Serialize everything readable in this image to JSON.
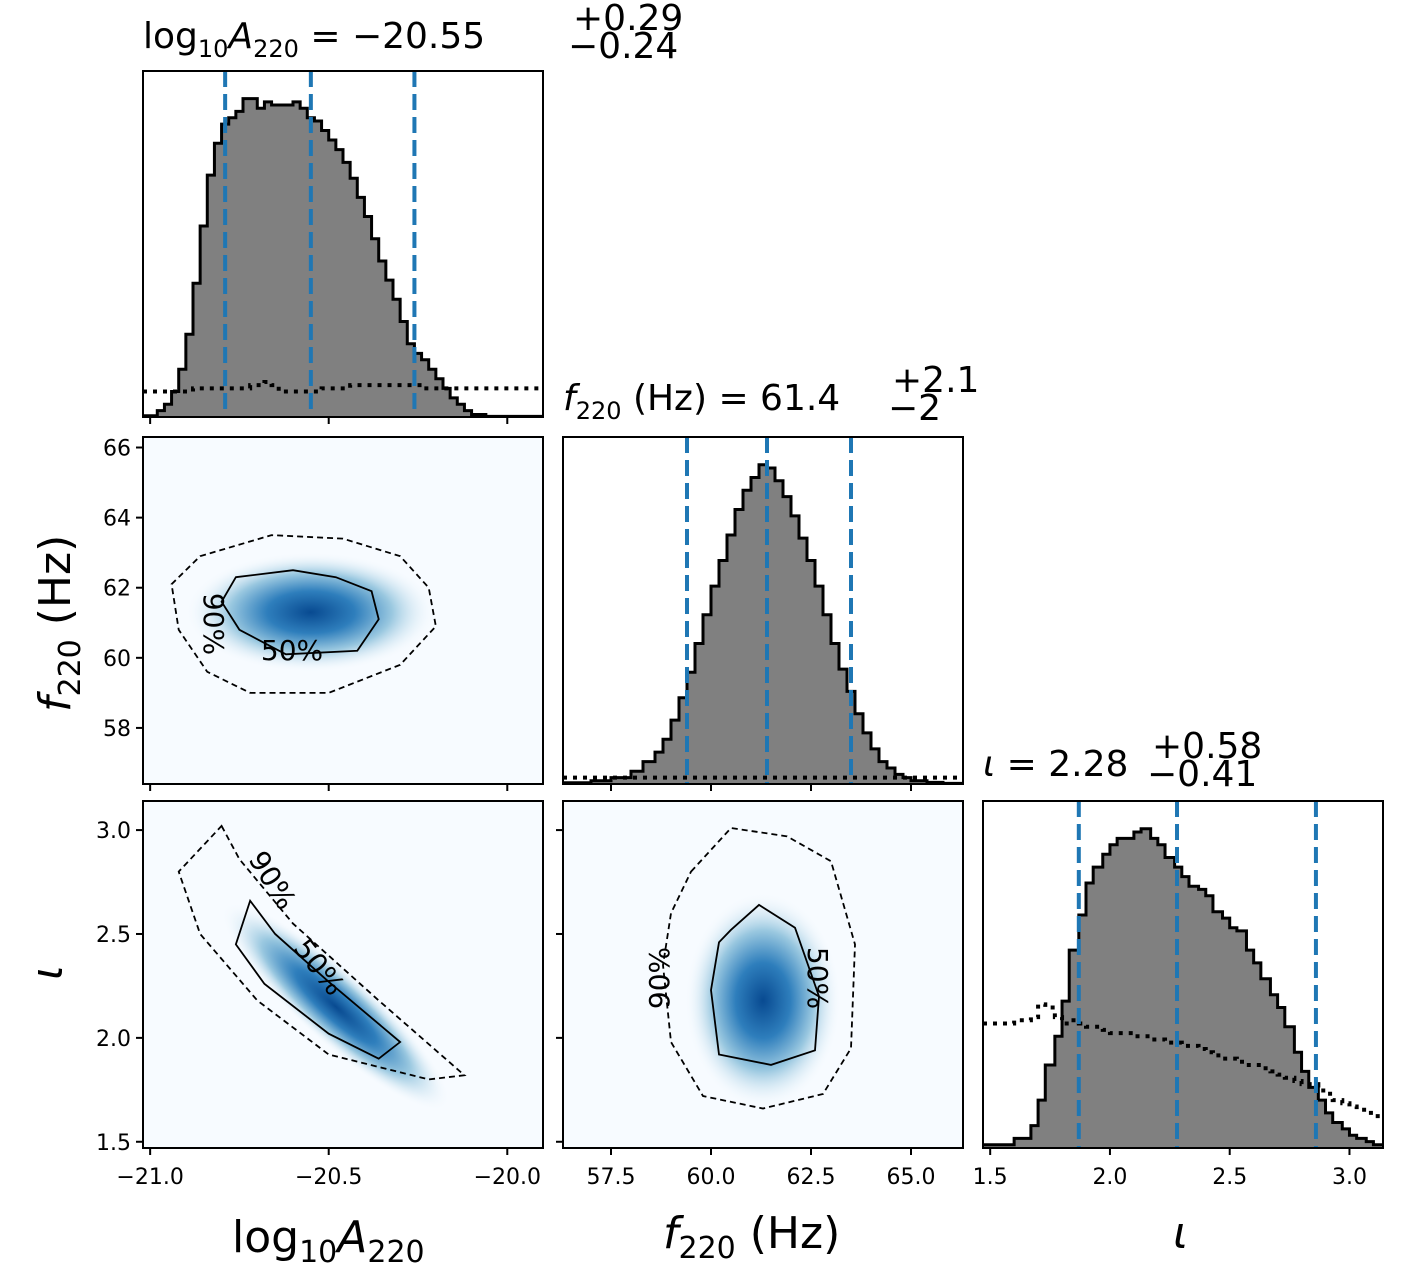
{
  "chart_data": [
    {
      "type": "histogram",
      "parameter": "log10A220",
      "title": {
        "main": "log",
        "sub1": "10",
        "mid": "A",
        "sub2": "220",
        "eq": " = −20.55",
        "sup": "+0.29",
        "sub": "−0.24"
      },
      "xlim": [
        -21.02,
        -19.9
      ],
      "x_ticks": [
        -21.0,
        -20.5,
        -20.0
      ],
      "quantile_lines": [
        -20.79,
        -20.55,
        -20.26
      ],
      "bins": [
        -21.02,
        -20.98,
        -20.96,
        -20.94,
        -20.92,
        -20.9,
        -20.88,
        -20.86,
        -20.84,
        -20.82,
        -20.8,
        -20.78,
        -20.76,
        -20.74,
        -20.72,
        -20.7,
        -20.68,
        -20.66,
        -20.64,
        -20.62,
        -20.6,
        -20.58,
        -20.56,
        -20.54,
        -20.52,
        -20.5,
        -20.48,
        -20.46,
        -20.44,
        -20.42,
        -20.4,
        -20.38,
        -20.36,
        -20.34,
        -20.32,
        -20.3,
        -20.28,
        -20.26,
        -20.24,
        -20.22,
        -20.2,
        -20.18,
        -20.16,
        -20.14,
        -20.12,
        -20.1,
        -20.06,
        -19.9
      ],
      "counts": [
        0.004,
        0.02,
        0.04,
        0.08,
        0.15,
        0.26,
        0.42,
        0.6,
        0.76,
        0.86,
        0.92,
        0.94,
        0.96,
        1.0,
        1.0,
        0.97,
        0.99,
        0.98,
        0.98,
        0.98,
        0.99,
        0.97,
        0.94,
        0.93,
        0.9,
        0.87,
        0.84,
        0.8,
        0.75,
        0.69,
        0.63,
        0.56,
        0.49,
        0.43,
        0.37,
        0.3,
        0.23,
        0.2,
        0.18,
        0.15,
        0.12,
        0.09,
        0.06,
        0.04,
        0.02,
        0.008,
        0.002
      ],
      "prior": [
        0.08,
        0.08,
        0.08,
        0.08,
        0.08,
        0.08,
        0.09,
        0.09,
        0.09,
        0.09,
        0.09,
        0.09,
        0.09,
        0.09,
        0.1,
        0.1,
        0.11,
        0.1,
        0.08,
        0.08,
        0.08,
        0.08,
        0.08,
        0.08,
        0.09,
        0.09,
        0.09,
        0.09,
        0.1,
        0.1,
        0.1,
        0.1,
        0.1,
        0.1,
        0.1,
        0.1,
        0.1,
        0.1,
        0.09,
        0.09,
        0.09,
        0.09,
        0.09,
        0.09,
        0.09,
        0.09,
        0.09
      ]
    },
    {
      "type": "histogram",
      "parameter": "f220",
      "title": {
        "main": "f",
        "sub1": "220",
        "eq": " (Hz) = 61.4",
        "sup": "+2.1",
        "sub": "−2"
      },
      "xlim": [
        56.3,
        66.3
      ],
      "x_ticks": [
        57.5,
        60.0,
        62.5,
        65.0
      ],
      "quantile_lines": [
        59.4,
        61.4,
        63.5
      ],
      "bins": [
        56.3,
        57.0,
        57.5,
        58.0,
        58.3,
        58.6,
        58.8,
        59.0,
        59.2,
        59.4,
        59.6,
        59.8,
        60.0,
        60.2,
        60.4,
        60.6,
        60.8,
        61.0,
        61.2,
        61.4,
        61.6,
        61.8,
        62.0,
        62.2,
        62.4,
        62.6,
        62.8,
        63.0,
        63.2,
        63.4,
        63.6,
        63.8,
        64.0,
        64.2,
        64.4,
        64.6,
        64.8,
        65.0,
        65.4,
        65.8,
        66.3
      ],
      "counts": [
        0.004,
        0.01,
        0.02,
        0.04,
        0.07,
        0.1,
        0.14,
        0.2,
        0.27,
        0.35,
        0.44,
        0.53,
        0.62,
        0.7,
        0.78,
        0.86,
        0.92,
        0.96,
        1.0,
        0.99,
        0.95,
        0.9,
        0.84,
        0.77,
        0.7,
        0.62,
        0.53,
        0.44,
        0.36,
        0.29,
        0.22,
        0.16,
        0.11,
        0.07,
        0.05,
        0.03,
        0.02,
        0.01,
        0.005,
        0.002
      ],
      "prior": [
        0.02,
        0.02,
        0.02,
        0.02,
        0.02,
        0.02,
        0.02,
        0.02,
        0.02,
        0.02,
        0.02,
        0.02,
        0.02,
        0.02,
        0.02,
        0.02,
        0.02,
        0.02,
        0.02,
        0.02,
        0.02,
        0.02,
        0.02,
        0.02,
        0.02,
        0.02,
        0.02,
        0.02,
        0.02,
        0.02,
        0.02,
        0.02,
        0.02,
        0.02,
        0.02,
        0.02,
        0.02,
        0.02,
        0.02,
        0.02
      ]
    },
    {
      "type": "histogram",
      "parameter": "iota",
      "title": {
        "main": "ι",
        "eq": " = 2.28",
        "sup": "+0.58",
        "sub": "−0.41"
      },
      "xlim": [
        1.47,
        3.14
      ],
      "x_ticks": [
        1.5,
        2.0,
        2.5,
        3.0
      ],
      "quantile_lines": [
        1.87,
        2.28,
        2.86
      ],
      "bins": [
        1.47,
        1.6,
        1.67,
        1.7,
        1.73,
        1.77,
        1.8,
        1.83,
        1.87,
        1.9,
        1.93,
        1.97,
        2.0,
        2.03,
        2.07,
        2.1,
        2.13,
        2.17,
        2.2,
        2.23,
        2.27,
        2.3,
        2.33,
        2.37,
        2.4,
        2.43,
        2.47,
        2.5,
        2.53,
        2.57,
        2.6,
        2.63,
        2.67,
        2.7,
        2.73,
        2.77,
        2.8,
        2.83,
        2.87,
        2.9,
        2.93,
        2.97,
        3.0,
        3.03,
        3.07,
        3.1,
        3.14
      ],
      "counts": [
        0.01,
        0.03,
        0.07,
        0.15,
        0.26,
        0.35,
        0.46,
        0.62,
        0.73,
        0.83,
        0.88,
        0.92,
        0.95,
        0.97,
        0.97,
        0.99,
        1.0,
        0.97,
        0.95,
        0.91,
        0.88,
        0.85,
        0.82,
        0.81,
        0.79,
        0.74,
        0.72,
        0.69,
        0.68,
        0.62,
        0.58,
        0.53,
        0.48,
        0.44,
        0.38,
        0.3,
        0.24,
        0.19,
        0.15,
        0.11,
        0.08,
        0.06,
        0.04,
        0.03,
        0.02,
        0.01
      ],
      "prior": [
        0.39,
        0.4,
        0.41,
        0.45,
        0.44,
        0.41,
        0.39,
        0.4,
        0.39,
        0.38,
        0.38,
        0.37,
        0.36,
        0.36,
        0.36,
        0.35,
        0.35,
        0.34,
        0.34,
        0.33,
        0.33,
        0.32,
        0.32,
        0.31,
        0.3,
        0.29,
        0.28,
        0.28,
        0.27,
        0.26,
        0.26,
        0.25,
        0.24,
        0.23,
        0.22,
        0.21,
        0.2,
        0.2,
        0.18,
        0.17,
        0.15,
        0.14,
        0.13,
        0.12,
        0.11,
        0.1
      ]
    },
    {
      "type": "heatmap",
      "x_parameter": "log10A220",
      "y_parameter": "f220",
      "xlim": [
        -21.02,
        -19.9
      ],
      "ylim": [
        56.4,
        66.3
      ],
      "y_ticks": [
        58,
        60,
        62,
        64,
        66
      ],
      "density_center": [
        -20.55,
        61.3
      ],
      "contour_50": [
        [
          -20.76,
          62.3
        ],
        [
          -20.6,
          62.5
        ],
        [
          -20.48,
          62.3
        ],
        [
          -20.38,
          61.9
        ],
        [
          -20.36,
          61.1
        ],
        [
          -20.42,
          60.2
        ],
        [
          -20.62,
          60.1
        ],
        [
          -20.75,
          60.8
        ],
        [
          -20.8,
          61.6
        ]
      ],
      "contour_90": [
        [
          -20.86,
          62.9
        ],
        [
          -20.66,
          63.5
        ],
        [
          -20.46,
          63.4
        ],
        [
          -20.3,
          62.9
        ],
        [
          -20.22,
          62.0
        ],
        [
          -20.2,
          60.9
        ],
        [
          -20.3,
          59.8
        ],
        [
          -20.5,
          59.0
        ],
        [
          -20.72,
          59.0
        ],
        [
          -20.84,
          59.6
        ],
        [
          -20.92,
          60.8
        ],
        [
          -20.94,
          62.1
        ]
      ],
      "labels": [
        "50%",
        "90%"
      ]
    },
    {
      "type": "heatmap",
      "x_parameter": "log10A220",
      "y_parameter": "iota",
      "xlim": [
        -21.02,
        -19.9
      ],
      "ylim": [
        1.47,
        3.14
      ],
      "y_ticks": [
        1.5,
        2.0,
        2.5,
        3.0
      ],
      "density_center": [
        -20.48,
        2.15
      ],
      "contour_50": [
        [
          -20.72,
          2.66
        ],
        [
          -20.65,
          2.5
        ],
        [
          -20.5,
          2.27
        ],
        [
          -20.3,
          1.98
        ],
        [
          -20.36,
          1.9
        ],
        [
          -20.5,
          2.02
        ],
        [
          -20.68,
          2.26
        ],
        [
          -20.76,
          2.45
        ]
      ],
      "contour_90": [
        [
          -20.8,
          3.02
        ],
        [
          -20.75,
          2.86
        ],
        [
          -20.6,
          2.55
        ],
        [
          -20.36,
          2.18
        ],
        [
          -20.12,
          1.82
        ],
        [
          -20.22,
          1.8
        ],
        [
          -20.5,
          1.92
        ],
        [
          -20.7,
          2.18
        ],
        [
          -20.86,
          2.5
        ],
        [
          -20.92,
          2.8
        ]
      ],
      "labels": [
        "50%",
        "90%"
      ]
    },
    {
      "type": "heatmap",
      "x_parameter": "f220",
      "y_parameter": "iota",
      "xlim": [
        56.3,
        66.3
      ],
      "ylim": [
        1.47,
        3.14
      ],
      "density_center": [
        61.3,
        2.18
      ],
      "contour_50": [
        [
          60.5,
          2.52
        ],
        [
          61.2,
          2.64
        ],
        [
          62.1,
          2.53
        ],
        [
          62.7,
          2.2
        ],
        [
          62.6,
          1.94
        ],
        [
          61.5,
          1.87
        ],
        [
          60.2,
          1.92
        ],
        [
          60.0,
          2.23
        ],
        [
          60.2,
          2.46
        ]
      ],
      "contour_90": [
        [
          59.5,
          2.8
        ],
        [
          60.5,
          3.01
        ],
        [
          61.9,
          2.97
        ],
        [
          63.0,
          2.85
        ],
        [
          63.6,
          2.45
        ],
        [
          63.5,
          1.95
        ],
        [
          62.8,
          1.73
        ],
        [
          61.3,
          1.66
        ],
        [
          59.8,
          1.72
        ],
        [
          59.0,
          1.98
        ],
        [
          58.8,
          2.35
        ],
        [
          59.0,
          2.6
        ]
      ],
      "labels": [
        "50%",
        "90%"
      ]
    }
  ],
  "axis_labels": {
    "logA": {
      "main": "log",
      "sub1": "10",
      "mid": "A",
      "sub2": "220"
    },
    "f": {
      "main": "f",
      "sub1": "220",
      "tail": " (Hz)"
    },
    "iota": {
      "main": "ι"
    }
  },
  "contour_labels": {
    "p50": "50%",
    "p90": "90%"
  },
  "colors": {
    "hist_fill": "#808080",
    "quantile": "#1f77b4",
    "density_high": "#08306b",
    "density_low": "#f7fbff"
  }
}
